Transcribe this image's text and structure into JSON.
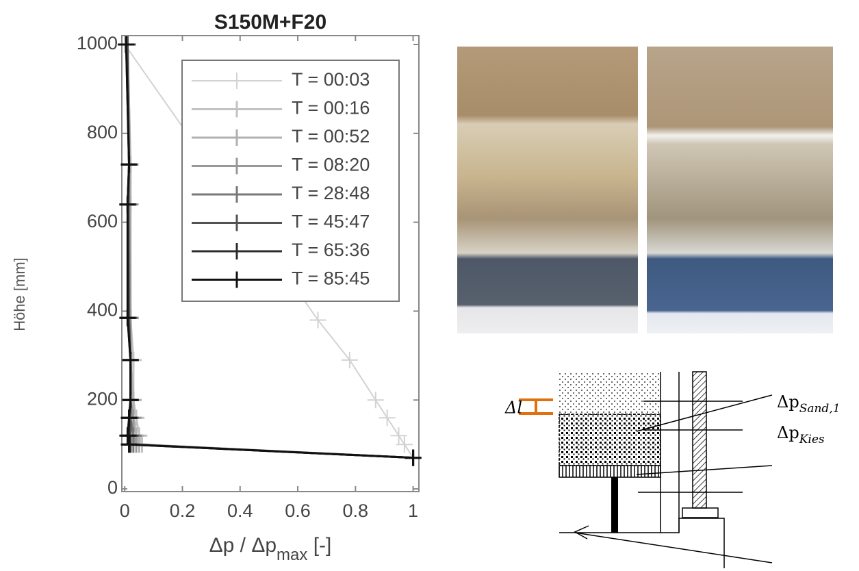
{
  "chart_data": {
    "type": "line",
    "title": "S150M+F20",
    "ylabel": "Höhe [mm]",
    "xlabel": [
      "Δp / Δp",
      "max",
      " [-]"
    ],
    "xlim": [
      -0.01,
      1.02
    ],
    "ylim": [
      -6,
      1020
    ],
    "xticks": [
      0,
      0.2,
      0.4,
      0.6,
      0.8,
      1
    ],
    "yticks": [
      0,
      200,
      400,
      600,
      800,
      1000
    ],
    "grid": false,
    "legend": "upper right",
    "series": [
      {
        "name": "T = 00:03",
        "color": "#d2d2d2",
        "x": [
          0,
          0.67,
          0.78,
          0.87,
          0.91,
          0.95,
          0.97,
          1
        ],
        "values": [
          1000,
          380,
          290,
          200,
          160,
          120,
          100,
          70
        ]
      },
      {
        "name": "T = 00:16",
        "color": "#c2c2c2",
        "x": [
          0.01,
          0.02,
          0.02,
          0.02,
          0.03,
          0.03,
          0.04,
          0.05,
          0.06,
          1
        ],
        "values": [
          1000,
          730,
          640,
          385,
          290,
          200,
          160,
          120,
          100,
          70
        ]
      },
      {
        "name": "T = 00:52",
        "color": "#b0b0b0",
        "x": [
          0.01,
          0.02,
          0.02,
          0.02,
          0.02,
          0.03,
          0.03,
          0.04,
          0.05,
          1
        ],
        "values": [
          1000,
          730,
          640,
          385,
          290,
          200,
          160,
          120,
          100,
          70
        ]
      },
      {
        "name": "T = 08:20",
        "color": "#989898",
        "x": [
          0.01,
          0.015,
          0.015,
          0.02,
          0.02,
          0.02,
          0.03,
          0.03,
          0.04,
          1
        ],
        "values": [
          1000,
          730,
          640,
          385,
          290,
          200,
          160,
          120,
          100,
          70
        ]
      },
      {
        "name": "T = 28:48",
        "color": "#777777",
        "x": [
          0.01,
          0.015,
          0.015,
          0.015,
          0.02,
          0.02,
          0.02,
          0.03,
          0.03,
          1
        ],
        "values": [
          1000,
          730,
          640,
          385,
          290,
          200,
          160,
          120,
          100,
          70
        ]
      },
      {
        "name": "T = 45:47",
        "color": "#525252",
        "x": [
          0.01,
          0.015,
          0.01,
          0.015,
          0.02,
          0.02,
          0.02,
          0.02,
          0.02,
          1
        ],
        "values": [
          1000,
          730,
          640,
          385,
          290,
          200,
          160,
          120,
          100,
          70
        ]
      },
      {
        "name": "T = 65:36",
        "color": "#2c2c2c",
        "x": [
          0.005,
          0.015,
          0.01,
          0.01,
          0.02,
          0.02,
          0.015,
          0.015,
          0.02,
          1
        ],
        "values": [
          1000,
          730,
          640,
          385,
          290,
          200,
          160,
          120,
          100,
          70
        ]
      },
      {
        "name": "T = 85:45",
        "color": "#111111",
        "x": [
          0.005,
          0.015,
          0.01,
          0.01,
          0.02,
          0.02,
          0.015,
          0.01,
          0.015,
          1
        ],
        "values": [
          1000,
          730,
          640,
          385,
          290,
          200,
          160,
          120,
          100,
          70
        ]
      }
    ]
  },
  "diagram": {
    "delta_l": "Δl",
    "labels": [
      {
        "base": "Δp",
        "sub": "Sand,1"
      },
      {
        "base": "Δp",
        "sub": "Kies"
      }
    ]
  }
}
